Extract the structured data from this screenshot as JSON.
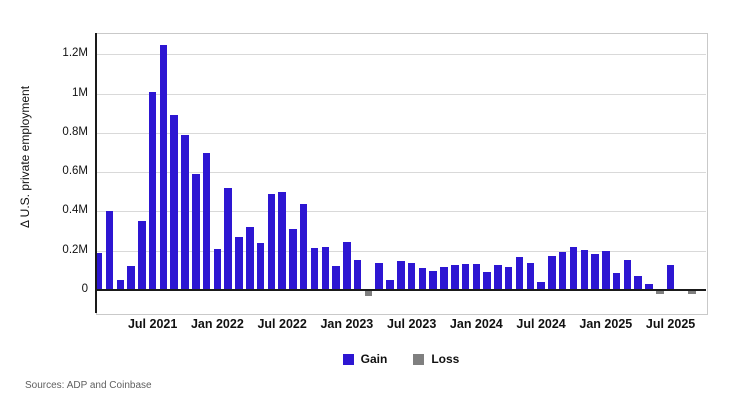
{
  "figure": {
    "ylabel": "Δ U.S. private employment",
    "source_note": "Sources: ADP and Coinbase",
    "legend": {
      "gain_label": "Gain",
      "loss_label": "Loss"
    },
    "colors": {
      "gain": "#2d16d2",
      "loss": "#7f7f7f",
      "grid": "#d9d9d9",
      "axis": "#1a1a1a"
    }
  },
  "chart_data": {
    "type": "bar",
    "title": "",
    "xlabel": "",
    "ylabel": "Δ U.S. private employment",
    "unit": "millions of jobs (monthly change)",
    "grid": true,
    "legend_position": "bottom-center",
    "ylim": [
      -0.07,
      1.31
    ],
    "x": [
      "Feb 2021",
      "Mar 2021",
      "Apr 2021",
      "May 2021",
      "Jun 2021",
      "Jul 2021",
      "Aug 2021",
      "Sep 2021",
      "Oct 2021",
      "Nov 2021",
      "Dec 2021",
      "Jan 2022",
      "Feb 2022",
      "Mar 2022",
      "Apr 2022",
      "May 2022",
      "Jun 2022",
      "Jul 2022",
      "Aug 2022",
      "Sep 2022",
      "Oct 2022",
      "Nov 2022",
      "Dec 2022",
      "Jan 2023",
      "Feb 2023",
      "Mar 2023",
      "Apr 2023",
      "May 2023",
      "Jun 2023",
      "Jul 2023",
      "Aug 2023",
      "Sep 2023",
      "Oct 2023",
      "Nov 2023",
      "Dec 2023",
      "Jan 2024",
      "Feb 2024",
      "Mar 2024",
      "Apr 2024",
      "May 2024",
      "Jun 2024",
      "Jul 2024",
      "Aug 2024",
      "Sep 2024",
      "Oct 2024",
      "Nov 2024",
      "Dec 2024",
      "Jan 2025",
      "Feb 2025",
      "Mar 2025",
      "Apr 2025",
      "May 2025",
      "Jun 2025",
      "Jul 2025",
      "Aug 2025",
      "Sep 2025"
    ],
    "values": [
      0.19,
      0.4,
      0.05,
      0.12,
      0.35,
      1.01,
      1.25,
      0.89,
      0.79,
      0.59,
      0.7,
      0.21,
      0.52,
      0.27,
      0.32,
      0.24,
      0.49,
      0.5,
      0.31,
      0.44,
      0.215,
      0.22,
      0.12,
      0.245,
      0.155,
      -0.03,
      0.135,
      0.05,
      0.148,
      0.136,
      0.114,
      0.095,
      0.115,
      0.125,
      0.13,
      0.13,
      0.09,
      0.125,
      0.115,
      0.17,
      0.14,
      0.042,
      0.175,
      0.192,
      0.22,
      0.204,
      0.182,
      0.2,
      0.085,
      0.153,
      0.07,
      0.03,
      -0.02,
      0.125,
      -0.003,
      -0.02
    ],
    "series_rule": "values >= 0 are 'Gain' (blue), values < 0 are 'Loss' (gray)",
    "yticks": [
      {
        "v": 0.0,
        "label": "0"
      },
      {
        "v": 0.2,
        "label": "0.2M"
      },
      {
        "v": 0.4,
        "label": "0.4M"
      },
      {
        "v": 0.6,
        "label": "0.6M"
      },
      {
        "v": 0.8,
        "label": "0.8M"
      },
      {
        "v": 1.0,
        "label": "1M"
      },
      {
        "v": 1.2,
        "label": "1.2M"
      }
    ],
    "xticks": [
      {
        "index": 5,
        "label": "Jul 2021"
      },
      {
        "index": 11,
        "label": "Jan 2022"
      },
      {
        "index": 17,
        "label": "Jul 2022"
      },
      {
        "index": 23,
        "label": "Jan 2023"
      },
      {
        "index": 29,
        "label": "Jul 2023"
      },
      {
        "index": 35,
        "label": "Jan 2024"
      },
      {
        "index": 41,
        "label": "Jul 2024"
      },
      {
        "index": 47,
        "label": "Jan 2025"
      },
      {
        "index": 53,
        "label": "Jul 2025"
      }
    ]
  }
}
